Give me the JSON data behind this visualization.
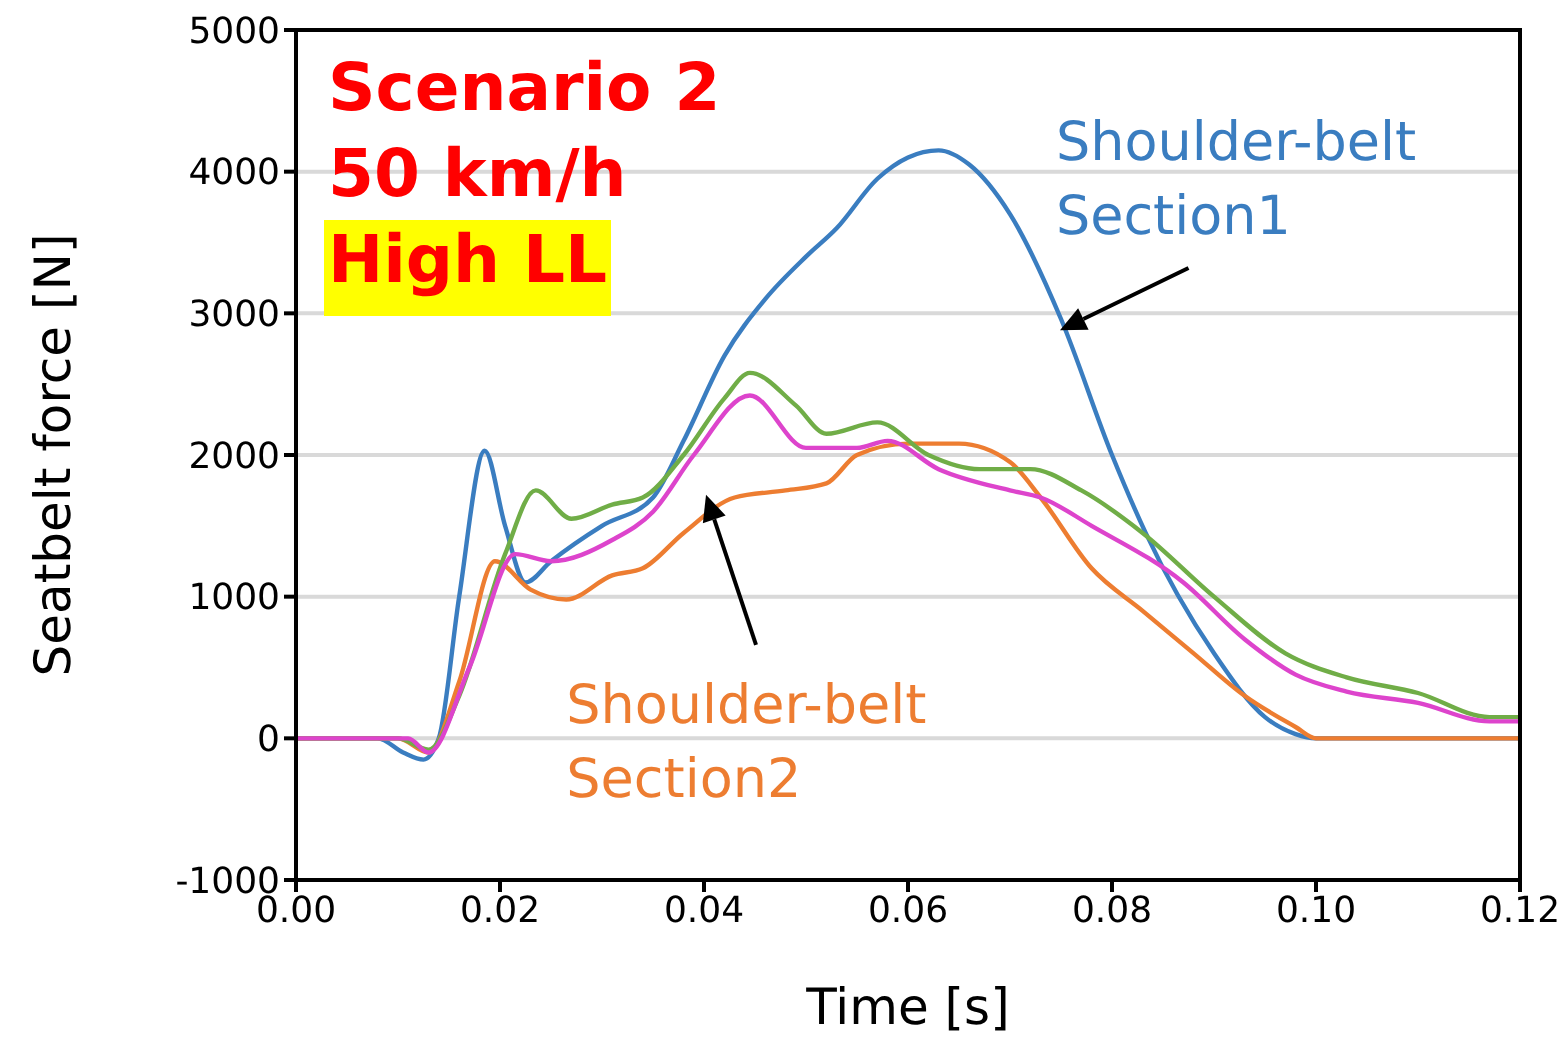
{
  "chart_data": {
    "type": "line",
    "xlabel": "Time [s]",
    "ylabel": "Seatbelt force [N]",
    "xlim": [
      0,
      0.12
    ],
    "ylim": [
      -1000,
      5000
    ],
    "xticks": [
      {
        "value": 0,
        "label": "0.00"
      },
      {
        "value": 0.02,
        "label": "0.02"
      },
      {
        "value": 0.04,
        "label": "0.04"
      },
      {
        "value": 0.06,
        "label": "0.06"
      },
      {
        "value": 0.08,
        "label": "0.08"
      },
      {
        "value": 0.1,
        "label": "0.10"
      },
      {
        "value": 0.12,
        "label": "0.12"
      }
    ],
    "yticks": [
      -1000,
      0,
      1000,
      2000,
      3000,
      4000,
      5000
    ],
    "grid": "y",
    "marker": "none",
    "line_style": "solid",
    "annotations": [
      "Scenario 2",
      "50 km/h",
      "High LL"
    ],
    "series": [
      {
        "name": "Shoulder-belt Section1",
        "color": "#3a7dc0",
        "x": [
          0,
          0.008,
          0.0105,
          0.0125,
          0.014,
          0.016,
          0.0185,
          0.0205,
          0.0225,
          0.025,
          0.03,
          0.035,
          0.038,
          0.042,
          0.046,
          0.05,
          0.053,
          0.057,
          0.06,
          0.063,
          0.066,
          0.07,
          0.075,
          0.08,
          0.0833,
          0.09,
          0.095,
          0.098,
          0.1,
          0.12
        ],
        "values": [
          0,
          0,
          -100,
          -150,
          0,
          1000,
          2030,
          1500,
          1100,
          1250,
          1500,
          1700,
          2100,
          2700,
          3100,
          3400,
          3600,
          3950,
          4100,
          4150,
          4050,
          3700,
          2960,
          2000,
          1450,
          600,
          150,
          30,
          0,
          0
        ]
      },
      {
        "name": "Shoulder-belt Section2",
        "color": "#ed7d31",
        "x": [
          0,
          0.01,
          0.013,
          0.016,
          0.0195,
          0.023,
          0.0265,
          0.031,
          0.034,
          0.038,
          0.043,
          0.048,
          0.052,
          0.055,
          0.06,
          0.065,
          0.07,
          0.073,
          0.078,
          0.083,
          0.088,
          0.093,
          0.098,
          0.1,
          0.12
        ],
        "values": [
          0,
          0,
          -100,
          400,
          1250,
          1050,
          980,
          1150,
          1200,
          1450,
          1700,
          1750,
          1800,
          2000,
          2080,
          2080,
          1950,
          1700,
          1200,
          900,
          600,
          300,
          80,
          0,
          0
        ]
      },
      {
        "color": "#70ad47",
        "x": [
          0,
          0.01,
          0.013,
          0.016,
          0.0205,
          0.0235,
          0.027,
          0.031,
          0.034,
          0.038,
          0.042,
          0.0445,
          0.049,
          0.052,
          0.057,
          0.062,
          0.067,
          0.072,
          0.077,
          0.083,
          0.09,
          0.097,
          0.103,
          0.11,
          0.117,
          0.12
        ],
        "values": [
          0,
          0,
          -80,
          300,
          1300,
          1750,
          1550,
          1650,
          1700,
          2000,
          2400,
          2580,
          2350,
          2150,
          2230,
          2000,
          1900,
          1900,
          1750,
          1450,
          1000,
          600,
          430,
          320,
          150,
          150
        ]
      },
      {
        "color": "#dd44cc",
        "x": [
          0,
          0.011,
          0.013,
          0.017,
          0.0215,
          0.025,
          0.031,
          0.035,
          0.039,
          0.0445,
          0.05,
          0.055,
          0.058,
          0.063,
          0.07,
          0.073,
          0.078,
          0.087,
          0.093,
          0.098,
          0.103,
          0.11,
          0.117,
          0.12
        ],
        "values": [
          0,
          0,
          -100,
          500,
          1300,
          1250,
          1400,
          1600,
          2000,
          2420,
          2050,
          2050,
          2100,
          1900,
          1750,
          1700,
          1500,
          1100,
          700,
          450,
          330,
          250,
          120,
          120
        ]
      }
    ]
  }
}
